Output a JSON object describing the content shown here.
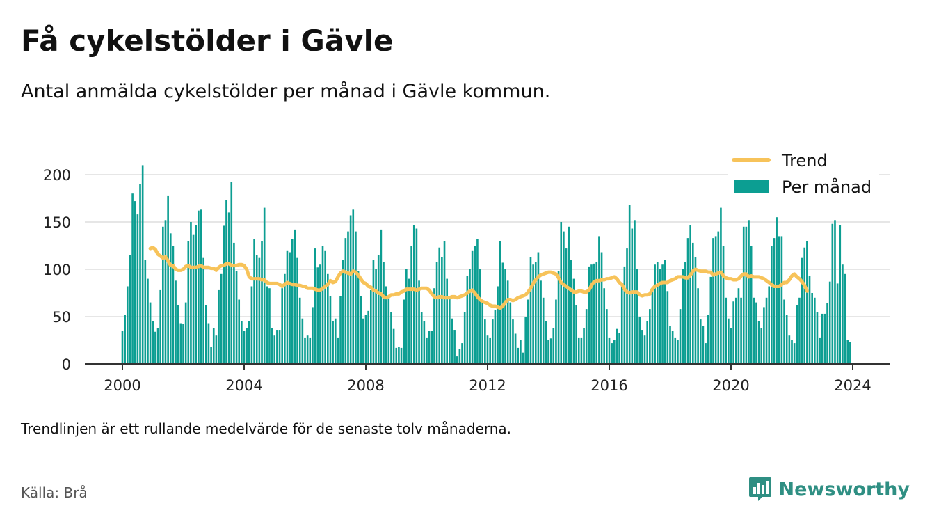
{
  "header": {
    "title": "Få cykelstölder i Gävle",
    "subtitle": "Antal anmälda cykelstölder per månad i Gävle kommun."
  },
  "footer": {
    "note": "Trendlinjen är ett rullande medelvärde för de senaste tolv månaderna.",
    "source": "Källa: Brå",
    "brand": "Newsworthy",
    "brand_icon": "bar-chart-icon"
  },
  "colors": {
    "bars": "#0c9e92",
    "trend": "#f7c35a",
    "axis": "#333333",
    "grid": "#dddddd",
    "brand": "#2f8f83"
  },
  "chart_data": {
    "type": "bar",
    "title": "Få cykelstölder i Gävle",
    "subtitle": "Antal anmälda cykelstölder per månad i Gävle kommun.",
    "xlabel": "",
    "ylabel": "",
    "x_ticks": [
      "2000",
      "2004",
      "2008",
      "2012",
      "2016",
      "2020",
      "2024"
    ],
    "y_ticks": [
      0,
      50,
      100,
      150,
      200
    ],
    "ylim": [
      0,
      215
    ],
    "xlim": [
      "1998-09",
      "2025-06"
    ],
    "grid": true,
    "legend_position": "top-right",
    "series": [
      {
        "name": "Per månad",
        "type": "bar",
        "start": "2000-01",
        "values": [
          35,
          52,
          82,
          115,
          180,
          172,
          158,
          190,
          210,
          110,
          90,
          65,
          45,
          34,
          38,
          78,
          145,
          152,
          178,
          138,
          125,
          88,
          62,
          43,
          42,
          65,
          130,
          150,
          137,
          147,
          162,
          163,
          112,
          62,
          43,
          18,
          38,
          30,
          78,
          95,
          146,
          173,
          160,
          192,
          128,
          98,
          68,
          45,
          35,
          38,
          45,
          82,
          132,
          115,
          112,
          130,
          165,
          82,
          80,
          38,
          30,
          36,
          36,
          80,
          95,
          120,
          118,
          132,
          142,
          112,
          70,
          48,
          28,
          30,
          28,
          60,
          122,
          102,
          105,
          125,
          120,
          95,
          72,
          45,
          48,
          28,
          72,
          110,
          133,
          140,
          157,
          163,
          140,
          98,
          72,
          48,
          52,
          56,
          78,
          110,
          100,
          115,
          142,
          108,
          82,
          70,
          55,
          37,
          17,
          18,
          17,
          68,
          100,
          90,
          125,
          147,
          143,
          88,
          55,
          45,
          28,
          35,
          35,
          80,
          108,
          123,
          113,
          130,
          90,
          72,
          48,
          36,
          8,
          16,
          22,
          55,
          93,
          100,
          120,
          125,
          132,
          100,
          65,
          47,
          30,
          28,
          47,
          57,
          82,
          130,
          107,
          100,
          88,
          65,
          47,
          32,
          17,
          25,
          12,
          50,
          68,
          113,
          105,
          108,
          118,
          88,
          70,
          45,
          25,
          27,
          38,
          68,
          98,
          150,
          140,
          122,
          145,
          110,
          90,
          62,
          28,
          28,
          38,
          58,
          103,
          105,
          106,
          108,
          135,
          118,
          80,
          58,
          28,
          22,
          25,
          37,
          33,
          82,
          103,
          122,
          168,
          143,
          152,
          100,
          50,
          36,
          30,
          45,
          58,
          80,
          105,
          108,
          100,
          105,
          110,
          77,
          40,
          35,
          28,
          25,
          58,
          100,
          108,
          133,
          147,
          128,
          113,
          80,
          47,
          40,
          22,
          52,
          92,
          133,
          135,
          140,
          165,
          125,
          70,
          48,
          38,
          66,
          70,
          80,
          70,
          145,
          145,
          152,
          125,
          70,
          65,
          45,
          38,
          60,
          70,
          82,
          125,
          133,
          155,
          135,
          135,
          68,
          52,
          30,
          25,
          22,
          62,
          70,
          112,
          123,
          130,
          93,
          75,
          70,
          55,
          28,
          53,
          53,
          64,
          87,
          148,
          152,
          85,
          147,
          105,
          95,
          25,
          23
        ]
      },
      {
        "name": "Trend",
        "type": "line",
        "start": "2000-12",
        "values": [
          122,
          123,
          121,
          116,
          114,
          112,
          113,
          109,
          104,
          104,
          100,
          99,
          99,
          100,
          103,
          104,
          102,
          102,
          102,
          103,
          104,
          102,
          102,
          102,
          101,
          101,
          99,
          102,
          104,
          104,
          106,
          106,
          104,
          104,
          104,
          105,
          105,
          104,
          100,
          92,
          90,
          90,
          90,
          90,
          89,
          89,
          86,
          85,
          85,
          85,
          85,
          84,
          82,
          84,
          86,
          85,
          84,
          84,
          83,
          83,
          82,
          82,
          80,
          80,
          80,
          79,
          78,
          78,
          80,
          82,
          84,
          88,
          86,
          87,
          92,
          96,
          98,
          97,
          96,
          95,
          98,
          97,
          94,
          90,
          86,
          85,
          82,
          81,
          78,
          77,
          75,
          74,
          71,
          70,
          71,
          73,
          73,
          74,
          74,
          76,
          77,
          79,
          79,
          79,
          79,
          78,
          79,
          80,
          80,
          80,
          78,
          74,
          71,
          70,
          71,
          71,
          70,
          70,
          70,
          71,
          71,
          70,
          71,
          72,
          73,
          75,
          77,
          78,
          75,
          71,
          68,
          66,
          65,
          64,
          62,
          61,
          61,
          60,
          59,
          61,
          65,
          68,
          68,
          67,
          68,
          70,
          71,
          72,
          73,
          76,
          80,
          85,
          89,
          92,
          94,
          95,
          96,
          97,
          97,
          96,
          95,
          91,
          86,
          84,
          82,
          80,
          78,
          76,
          76,
          77,
          77,
          76,
          76,
          78,
          83,
          87,
          88,
          88,
          89,
          89,
          90,
          90,
          91,
          92,
          90,
          86,
          84,
          79,
          76,
          75,
          76,
          76,
          76,
          73,
          72,
          73,
          73,
          74,
          79,
          82,
          83,
          85,
          86,
          86,
          86,
          88,
          89,
          90,
          92,
          92,
          92,
          91,
          91,
          94,
          98,
          100,
          99,
          98,
          98,
          98,
          97,
          97,
          94,
          95,
          96,
          97,
          93,
          91,
          90,
          90,
          89,
          89,
          90,
          93,
          95,
          95,
          92,
          93,
          92,
          92,
          92,
          91,
          90,
          88,
          86,
          84,
          82,
          82,
          82,
          84,
          86,
          86,
          89,
          93,
          95,
          92,
          90,
          87,
          83,
          77
        ]
      }
    ]
  }
}
